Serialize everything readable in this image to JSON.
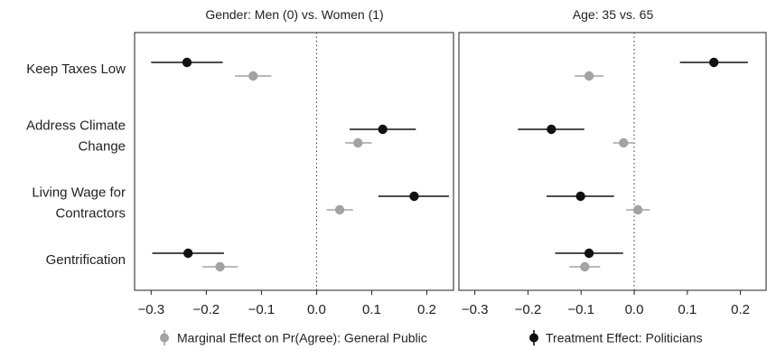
{
  "chart_data": {
    "type": "scatter",
    "subtype": "coefficient-plot-with-error-bars",
    "facets": [
      {
        "title": "Gender: Men (0) vs. Women (1)"
      },
      {
        "title": "Age: 35 vs. 65"
      }
    ],
    "categories": [
      "Keep Taxes Low",
      "Address Climate Change",
      "Living Wage for Contractors",
      "Gentrification"
    ],
    "category_lines": [
      [
        "Keep Taxes Low"
      ],
      [
        "Address Climate",
        "Change"
      ],
      [
        "Living Wage for",
        "Contractors"
      ],
      [
        "Gentrification"
      ]
    ],
    "xlim": [
      -0.33,
      0.25
    ],
    "xticks": [
      -0.3,
      -0.2,
      -0.1,
      0.0,
      0.1,
      0.2
    ],
    "xtick_labels": [
      "−0.3",
      "−0.2",
      "−0.1",
      "0.0",
      "0.1",
      "0.2"
    ],
    "reference_line": 0.0,
    "grid": false,
    "legend_position": "bottom",
    "series": [
      {
        "name": "Treatment Effect: Politicians",
        "color": "#111111",
        "facets": [
          [
            {
              "category": "Keep Taxes Low",
              "estimate": -0.235,
              "lower": -0.3,
              "upper": -0.17
            },
            {
              "category": "Address Climate Change",
              "estimate": 0.12,
              "lower": 0.06,
              "upper": 0.18
            },
            {
              "category": "Living Wage for Contractors",
              "estimate": 0.177,
              "lower": 0.112,
              "upper": 0.24
            },
            {
              "category": "Gentrification",
              "estimate": -0.233,
              "lower": -0.298,
              "upper": -0.168
            }
          ],
          [
            {
              "category": "Keep Taxes Low",
              "estimate": 0.15,
              "lower": 0.086,
              "upper": 0.214
            },
            {
              "category": "Address Climate Change",
              "estimate": -0.156,
              "lower": -0.219,
              "upper": -0.094
            },
            {
              "category": "Living Wage for Contractors",
              "estimate": -0.101,
              "lower": -0.165,
              "upper": -0.038
            },
            {
              "category": "Gentrification",
              "estimate": -0.085,
              "lower": -0.149,
              "upper": -0.021
            }
          ]
        ]
      },
      {
        "name": "Marginal Effect on Pr(Agree): General Public",
        "color": "#a3a3a3",
        "facets": [
          [
            {
              "category": "Keep Taxes Low",
              "estimate": -0.115,
              "lower": -0.148,
              "upper": -0.082
            },
            {
              "category": "Address Climate Change",
              "estimate": 0.075,
              "lower": 0.052,
              "upper": 0.1
            },
            {
              "category": "Living Wage for Contractors",
              "estimate": 0.042,
              "lower": 0.018,
              "upper": 0.066
            },
            {
              "category": "Gentrification",
              "estimate": -0.175,
              "lower": -0.207,
              "upper": -0.143
            }
          ],
          [
            {
              "category": "Keep Taxes Low",
              "estimate": -0.085,
              "lower": -0.112,
              "upper": -0.058
            },
            {
              "category": "Address Climate Change",
              "estimate": -0.02,
              "lower": -0.04,
              "upper": 0.0
            },
            {
              "category": "Living Wage for Contractors",
              "estimate": 0.007,
              "lower": -0.015,
              "upper": 0.029
            },
            {
              "category": "Gentrification",
              "estimate": -0.093,
              "lower": -0.122,
              "upper": -0.064
            }
          ]
        ]
      }
    ]
  }
}
